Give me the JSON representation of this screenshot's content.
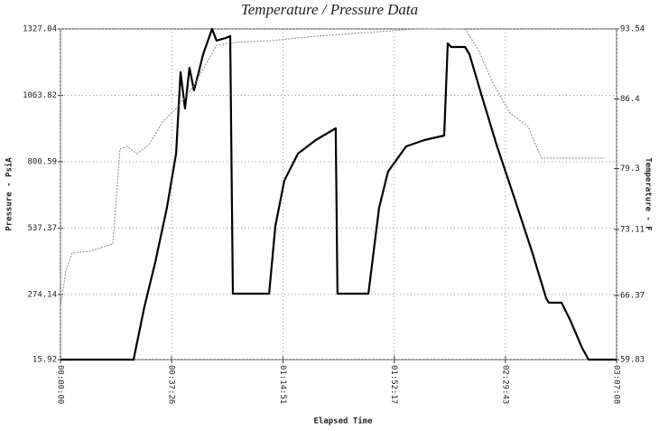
{
  "chart_data": {
    "type": "line",
    "title": "Temperature / Pressure Data",
    "xlabel": "Elapsed Time",
    "ylabel": "Pressure - PsiA",
    "y2label": "Temperature - F",
    "xlim": [
      0,
      187.1
    ],
    "xticks": [
      {
        "value": 0,
        "label": "00:00:00"
      },
      {
        "value": 37.4,
        "label": "00:37:26"
      },
      {
        "value": 74.9,
        "label": "01:14:51"
      },
      {
        "value": 112.3,
        "label": "01:52:17"
      },
      {
        "value": 149.7,
        "label": "02:29:43"
      },
      {
        "value": 187.1,
        "label": "03:07:08"
      }
    ],
    "ylim": [
      15.92,
      1327.04
    ],
    "yticks": [
      15.92,
      274.14,
      537.37,
      800.59,
      1063.82,
      1327.04
    ],
    "y2lim": [
      59.83,
      93.54
    ],
    "y2ticks": [
      59.83,
      66.37,
      73.11,
      79.3,
      86.4,
      93.54
    ],
    "grid": true,
    "series": [
      {
        "name": "Pressure",
        "color": "#000000",
        "axis": "y",
        "x": [
          0,
          24.6,
          28.2,
          31.9,
          35.8,
          38.9,
          40.4,
          41.9,
          43.4,
          44.9,
          46.5,
          48.0,
          51.0,
          52.5,
          55.6,
          57.1,
          58.0,
          70.2,
          72.3,
          75.3,
          79.9,
          85.9,
          92.6,
          93.2,
          103.6,
          107.2,
          110.2,
          116.3,
          122.4,
          129.1,
          130.3,
          131.5,
          136.1,
          137.6,
          142.1,
          146.7,
          152.8,
          158.8,
          163.4,
          164.3,
          168.6,
          171.6,
          175.5,
          177.7,
          187.1
        ],
        "values": [
          15.92,
          15.92,
          223.7,
          402.8,
          617.7,
          832.7,
          1155.1,
          1011.8,
          1173.0,
          1083.4,
          1155.1,
          1226.7,
          1327.0,
          1280.5,
          1291.2,
          1298.4,
          277.4,
          277.4,
          546.1,
          725.2,
          832.7,
          886.4,
          933.0,
          277.4,
          277.4,
          617.7,
          761.0,
          861.3,
          886.4,
          904.3,
          1269.7,
          1255.4,
          1255.4,
          1226.7,
          1047.6,
          868.5,
          653.6,
          438.6,
          259.5,
          241.6,
          241.6,
          170.0,
          62.5,
          15.92,
          15.92
        ]
      },
      {
        "name": "Temperature",
        "color": "#888888",
        "axis": "y2",
        "x": [
          0,
          1.8,
          3.9,
          10.0,
          17.6,
          20.0,
          22.2,
          25.8,
          29.8,
          34.3,
          38.9,
          44.9,
          52.5,
          58.6,
          70.8,
          85.9,
          107.2,
          119.4,
          136.1,
          140.6,
          145.2,
          151.2,
          157.3,
          161.8,
          167.9,
          183.1
        ],
        "values": [
          65.17,
          68.86,
          70.7,
          70.88,
          71.62,
          81.29,
          81.57,
          80.83,
          81.75,
          84.05,
          85.43,
          87.74,
          91.88,
          92.16,
          92.34,
          92.8,
          93.26,
          93.54,
          93.54,
          91.42,
          88.2,
          84.97,
          83.59,
          80.37,
          80.37,
          80.37
        ]
      }
    ]
  }
}
